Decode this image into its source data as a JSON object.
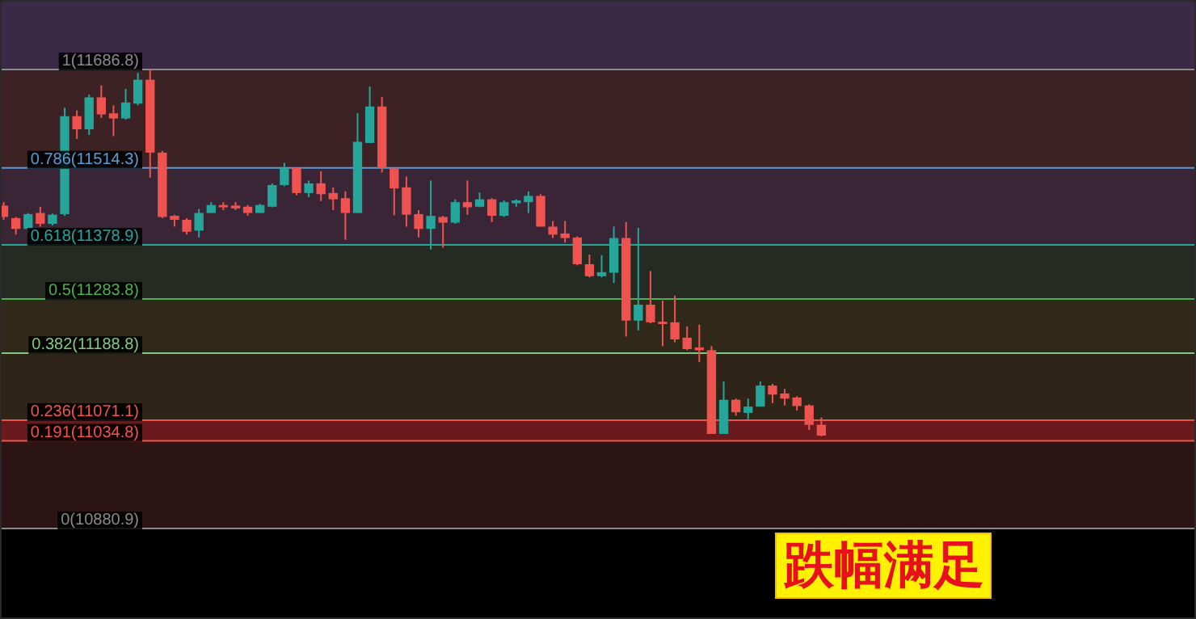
{
  "chart_data": {
    "type": "candlestick",
    "categories": [
      null,
      null,
      null,
      null,
      null,
      null,
      null,
      null,
      null,
      null,
      null,
      null,
      null,
      null,
      null,
      null,
      null,
      null,
      null,
      null,
      null,
      null,
      null,
      null,
      null,
      null,
      null,
      null,
      null,
      null,
      null,
      null,
      null,
      null,
      null,
      null,
      null,
      null,
      null,
      null,
      null,
      null,
      null,
      null,
      null,
      null,
      null,
      null,
      null,
      null,
      null,
      null,
      null,
      null,
      null,
      null,
      null,
      null,
      null,
      null,
      null,
      null,
      null,
      null,
      null,
      null,
      null,
      null,
      null,
      null,
      null,
      null,
      null,
      null,
      null,
      null,
      null,
      null,
      null,
      null,
      null,
      null,
      null,
      null,
      null,
      null,
      null,
      null,
      null,
      null,
      null,
      null,
      null,
      null,
      null,
      null,
      null,
      null
    ],
    "ohlc": [
      [
        11448,
        11454,
        11423,
        11428
      ],
      [
        11426,
        11428,
        11397,
        11407
      ],
      [
        11407,
        11435,
        11400,
        11433
      ],
      [
        11435,
        11446,
        11411,
        11416
      ],
      [
        11416,
        11434,
        11413,
        11432
      ],
      [
        11433,
        11620,
        11430,
        11605
      ],
      [
        11605,
        11615,
        11565,
        11582
      ],
      [
        11582,
        11643,
        11572,
        11638
      ],
      [
        11638,
        11659,
        11602,
        11608
      ],
      [
        11610,
        11624,
        11570,
        11601
      ],
      [
        11601,
        11653,
        11599,
        11629
      ],
      [
        11627,
        11681,
        11624,
        11669
      ],
      [
        11669,
        11687,
        11497,
        11541
      ],
      [
        11541,
        11544,
        11426,
        11428
      ],
      [
        11430,
        11432,
        11411,
        11423
      ],
      [
        11423,
        11426,
        11397,
        11402
      ],
      [
        11404,
        11442,
        11392,
        11435
      ],
      [
        11435,
        11454,
        11435,
        11449
      ],
      [
        11449,
        11454,
        11440,
        11445
      ],
      [
        11448,
        11454,
        11440,
        11443
      ],
      [
        11446,
        11449,
        11430,
        11435
      ],
      [
        11435,
        11451,
        11435,
        11449
      ],
      [
        11446,
        11487,
        11445,
        11484
      ],
      [
        11484,
        11523,
        11482,
        11514
      ],
      [
        11514,
        11514,
        11466,
        11470
      ],
      [
        11470,
        11492,
        11463,
        11487
      ],
      [
        11487,
        11508,
        11456,
        11468
      ],
      [
        11470,
        11480,
        11440,
        11459
      ],
      [
        11461,
        11473,
        11388,
        11435
      ],
      [
        11435,
        11610,
        11435,
        11560
      ],
      [
        11558,
        11657,
        11558,
        11622
      ],
      [
        11622,
        11639,
        11506,
        11514
      ],
      [
        11513,
        11514,
        11431,
        11478
      ],
      [
        11480,
        11499,
        11411,
        11432
      ],
      [
        11433,
        11440,
        11392,
        11407
      ],
      [
        11407,
        11492,
        11371,
        11430
      ],
      [
        11428,
        11430,
        11374,
        11418
      ],
      [
        11418,
        11459,
        11416,
        11454
      ],
      [
        11454,
        11492,
        11432,
        11445
      ],
      [
        11446,
        11471,
        11445,
        11459
      ],
      [
        11459,
        11461,
        11419,
        11430
      ],
      [
        11430,
        11457,
        11428,
        11454
      ],
      [
        11452,
        11459,
        11446,
        11457
      ],
      [
        11454,
        11473,
        11435,
        11465
      ],
      [
        11465,
        11468,
        11411,
        11411
      ],
      [
        11411,
        11421,
        11391,
        11397
      ],
      [
        11399,
        11421,
        11383,
        11391
      ],
      [
        11392,
        11394,
        11343,
        11345
      ],
      [
        11345,
        11362,
        11322,
        11324
      ],
      [
        11324,
        11361,
        11322,
        11331
      ],
      [
        11330,
        11411,
        11312,
        11391
      ],
      [
        11391,
        11419,
        11218,
        11246
      ],
      [
        11246,
        11409,
        11229,
        11274
      ],
      [
        11274,
        11333,
        11241,
        11243
      ],
      [
        11244,
        11281,
        11201,
        11240
      ],
      [
        11243,
        11290,
        11208,
        11213
      ],
      [
        11216,
        11236,
        11194,
        11196
      ],
      [
        11199,
        11239,
        11173,
        11194
      ],
      [
        11194,
        11201,
        11047,
        11047
      ],
      [
        11047,
        11139,
        11047,
        11107
      ],
      [
        11107,
        11109,
        11079,
        11085
      ],
      [
        11084,
        11109,
        11073,
        11095
      ],
      [
        11095,
        11139,
        11095,
        11132
      ],
      [
        11132,
        11135,
        11101,
        11116
      ],
      [
        11118,
        11126,
        11097,
        11109
      ],
      [
        11111,
        11113,
        11088,
        11096
      ],
      [
        11097,
        11099,
        11054,
        11063
      ],
      [
        11063,
        11076,
        11043,
        11044
      ],
      null,
      null,
      null,
      null,
      null,
      null,
      null,
      null,
      null,
      null,
      null,
      null,
      null,
      null,
      null,
      null,
      null,
      null,
      null,
      null,
      null,
      null,
      null,
      null,
      null,
      null,
      null,
      null,
      null,
      null
    ],
    "ylim": [
      10722,
      11809
    ],
    "bands": [
      {
        "axis": "y",
        "from": 11686.8,
        "to": 11809,
        "color": "#3a2a48"
      },
      {
        "axis": "y",
        "from": 11514.3,
        "to": 11686.8,
        "color": "#3c2224"
      },
      {
        "axis": "y",
        "from": 11378.9,
        "to": 11514.3,
        "color": "#3a2536"
      },
      {
        "axis": "y",
        "from": 11283.8,
        "to": 11378.9,
        "color": "#252a22"
      },
      {
        "axis": "y",
        "from": 11188.8,
        "to": 11283.8,
        "color": "#30291a"
      },
      {
        "axis": "y",
        "from": 11071.1,
        "to": 11188.8,
        "color": "#2e2418"
      },
      {
        "axis": "y",
        "from": 11034.8,
        "to": 11071.1,
        "color": "#6a1a1c"
      },
      {
        "axis": "y",
        "from": 10880.9,
        "to": 11034.8,
        "color": "#2c1414"
      }
    ],
    "ref_lines": [
      {
        "axis": "y",
        "value": 11686.8,
        "label": "1(11686.8)",
        "color": "#8a8a8a"
      },
      {
        "axis": "y",
        "value": 11514.3,
        "label": "0.786(11514.3)",
        "color": "#5b9bd5"
      },
      {
        "axis": "y",
        "value": 11378.9,
        "label": "0.618(11378.9)",
        "color": "#26a69a"
      },
      {
        "axis": "y",
        "value": 11283.8,
        "label": "0.5(11283.8)",
        "color": "#4caf50"
      },
      {
        "axis": "y",
        "value": 11188.8,
        "label": "0.382(11188.8)",
        "color": "#81c784"
      },
      {
        "axis": "y",
        "value": 11071.1,
        "label": "0.236(11071.1)",
        "color": "#ef5350"
      },
      {
        "axis": "y",
        "value": 11034.8,
        "label": "0.191(11034.8)",
        "color": "#ef5350"
      },
      {
        "axis": "y",
        "value": 10880.9,
        "label": "0(10880.9)",
        "color": "#8a8a8a"
      }
    ],
    "annotations": [
      "跌幅满足"
    ]
  }
}
